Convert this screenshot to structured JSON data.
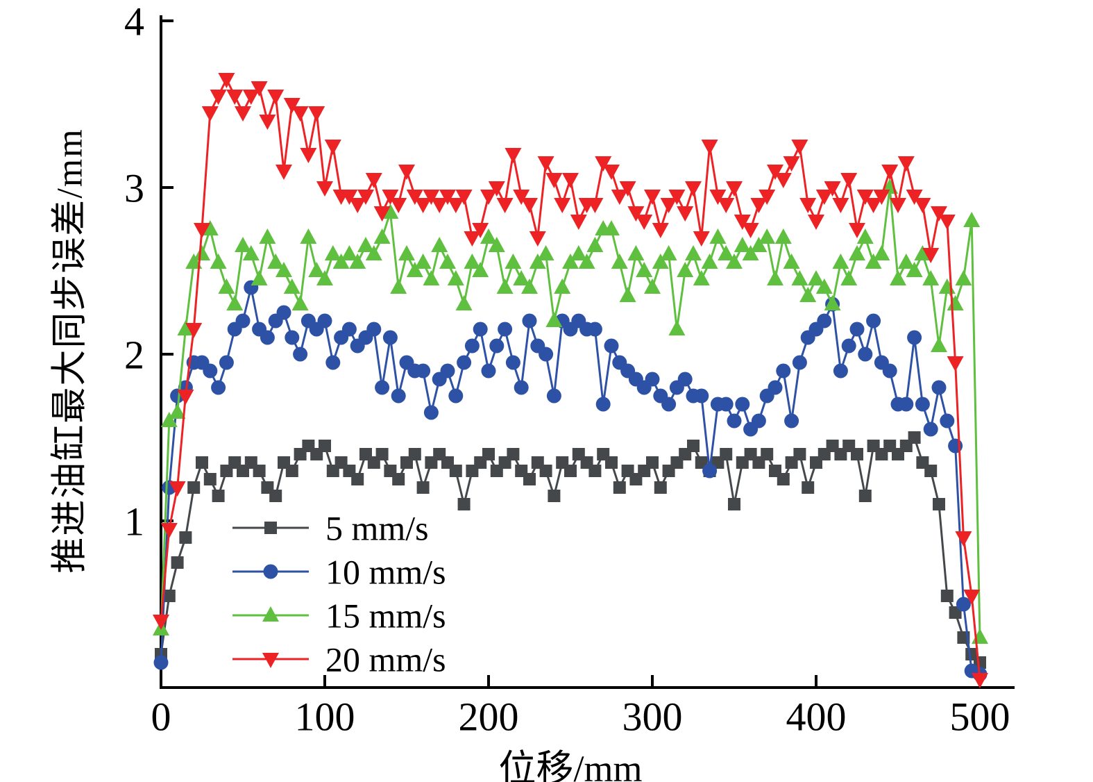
{
  "chart_data": {
    "type": "line",
    "title": "",
    "xlabel": "位移/mm",
    "ylabel": "推进油缸最大同步误差/mm",
    "xlim": [
      0,
      500
    ],
    "ylim": [
      0,
      4
    ],
    "x_ticks": [
      0,
      100,
      200,
      300,
      400,
      500
    ],
    "y_ticks": [
      1,
      2,
      3,
      4
    ],
    "grid": false,
    "legend_position": "inside-lower-left",
    "x": [
      0,
      5,
      10,
      15,
      20,
      25,
      30,
      35,
      40,
      45,
      50,
      55,
      60,
      65,
      70,
      75,
      80,
      85,
      90,
      95,
      100,
      105,
      110,
      115,
      120,
      125,
      130,
      135,
      140,
      145,
      150,
      155,
      160,
      165,
      170,
      175,
      180,
      185,
      190,
      195,
      200,
      205,
      210,
      215,
      220,
      225,
      230,
      235,
      240,
      245,
      250,
      255,
      260,
      265,
      270,
      275,
      280,
      285,
      290,
      295,
      300,
      305,
      310,
      315,
      320,
      325,
      330,
      335,
      340,
      345,
      350,
      355,
      360,
      365,
      370,
      375,
      380,
      385,
      390,
      395,
      400,
      405,
      410,
      415,
      420,
      425,
      430,
      435,
      440,
      445,
      450,
      455,
      460,
      465,
      470,
      475,
      480,
      485,
      490,
      495,
      500
    ],
    "series": [
      {
        "name": "5 mm/s",
        "marker": "square",
        "color": "#45484b",
        "values": [
          0.2,
          0.55,
          0.75,
          0.9,
          1.2,
          1.35,
          1.25,
          1.15,
          1.3,
          1.35,
          1.3,
          1.35,
          1.3,
          1.2,
          1.15,
          1.35,
          1.3,
          1.4,
          1.45,
          1.4,
          1.45,
          1.3,
          1.35,
          1.3,
          1.25,
          1.4,
          1.35,
          1.4,
          1.3,
          1.25,
          1.35,
          1.4,
          1.2,
          1.35,
          1.4,
          1.35,
          1.3,
          1.1,
          1.3,
          1.35,
          1.4,
          1.3,
          1.35,
          1.4,
          1.3,
          1.25,
          1.35,
          1.3,
          1.15,
          1.35,
          1.3,
          1.4,
          1.35,
          1.3,
          1.4,
          1.35,
          1.2,
          1.3,
          1.25,
          1.3,
          1.35,
          1.2,
          1.3,
          1.35,
          1.4,
          1.45,
          1.35,
          1.3,
          1.35,
          1.4,
          1.1,
          1.35,
          1.4,
          1.35,
          1.4,
          1.3,
          1.25,
          1.35,
          1.4,
          1.2,
          1.35,
          1.4,
          1.45,
          1.4,
          1.45,
          1.4,
          1.15,
          1.45,
          1.4,
          1.45,
          1.4,
          1.45,
          1.5,
          1.35,
          1.3,
          1.1,
          0.55,
          0.45,
          0.3,
          0.2,
          0.15
        ]
      },
      {
        "name": "10 mm/s",
        "marker": "circle",
        "color": "#2c51a5",
        "values": [
          0.15,
          1.2,
          1.75,
          1.8,
          1.95,
          1.95,
          1.9,
          1.8,
          1.95,
          2.15,
          2.2,
          2.4,
          2.15,
          2.1,
          2.2,
          2.25,
          2.1,
          2.0,
          2.2,
          2.15,
          2.2,
          1.95,
          2.1,
          2.15,
          2.05,
          2.1,
          2.15,
          1.8,
          2.1,
          1.75,
          1.95,
          1.9,
          1.9,
          1.65,
          1.85,
          1.9,
          1.75,
          1.95,
          2.05,
          2.15,
          1.9,
          2.05,
          2.15,
          1.95,
          1.8,
          2.2,
          2.05,
          2.0,
          1.75,
          2.2,
          2.15,
          2.2,
          2.15,
          2.15,
          1.7,
          2.05,
          1.95,
          1.9,
          1.85,
          1.8,
          1.85,
          1.75,
          1.7,
          1.8,
          1.85,
          1.75,
          1.75,
          1.3,
          1.7,
          1.7,
          1.6,
          1.7,
          1.55,
          1.6,
          1.75,
          1.8,
          1.9,
          1.6,
          1.95,
          2.1,
          2.15,
          2.2,
          2.3,
          1.9,
          2.05,
          2.15,
          2.0,
          2.2,
          1.95,
          1.9,
          1.7,
          1.7,
          2.1,
          1.7,
          1.55,
          1.8,
          1.6,
          1.45,
          0.5,
          0.1,
          0.08
        ]
      },
      {
        "name": "15 mm/s",
        "marker": "triangle-up",
        "color": "#5fbf3f",
        "values": [
          0.35,
          1.6,
          1.65,
          2.15,
          2.55,
          2.6,
          2.75,
          2.55,
          2.4,
          2.3,
          2.65,
          2.6,
          2.45,
          2.7,
          2.55,
          2.5,
          2.4,
          2.3,
          2.7,
          2.5,
          2.45,
          2.6,
          2.55,
          2.6,
          2.55,
          2.65,
          2.6,
          2.7,
          2.85,
          2.4,
          2.6,
          2.5,
          2.55,
          2.45,
          2.65,
          2.55,
          2.45,
          2.3,
          2.55,
          2.5,
          2.7,
          2.65,
          2.4,
          2.55,
          2.45,
          2.4,
          2.55,
          2.6,
          2.2,
          2.4,
          2.55,
          2.6,
          2.55,
          2.65,
          2.75,
          2.75,
          2.55,
          2.35,
          2.6,
          2.5,
          2.4,
          2.55,
          2.6,
          2.15,
          2.5,
          2.6,
          2.45,
          2.55,
          2.7,
          2.6,
          2.55,
          2.65,
          2.6,
          2.65,
          2.7,
          2.45,
          2.7,
          2.55,
          2.45,
          2.35,
          2.45,
          2.4,
          2.3,
          2.55,
          2.45,
          2.6,
          2.7,
          2.55,
          2.6,
          3.0,
          2.45,
          2.55,
          2.5,
          2.6,
          2.45,
          2.05,
          2.4,
          2.3,
          2.45,
          2.8,
          0.3
        ]
      },
      {
        "name": "20 mm/s",
        "marker": "triangle-down",
        "color": "#ec2224",
        "values": [
          0.4,
          0.95,
          1.2,
          1.75,
          2.15,
          2.75,
          3.45,
          3.55,
          3.65,
          3.55,
          3.45,
          3.55,
          3.6,
          3.4,
          3.55,
          3.1,
          3.5,
          3.45,
          3.2,
          3.45,
          3.0,
          3.25,
          2.95,
          2.95,
          2.9,
          2.95,
          3.05,
          2.85,
          2.95,
          2.9,
          3.1,
          2.95,
          2.9,
          2.95,
          2.9,
          2.95,
          2.9,
          2.95,
          2.7,
          2.75,
          2.95,
          3.0,
          2.9,
          3.2,
          2.95,
          2.9,
          2.7,
          3.15,
          3.05,
          2.9,
          3.05,
          2.8,
          2.9,
          2.9,
          3.15,
          3.1,
          2.95,
          3.0,
          2.85,
          2.8,
          2.95,
          2.75,
          2.9,
          2.95,
          2.85,
          3.0,
          2.7,
          3.25,
          2.95,
          2.9,
          3.0,
          2.8,
          2.75,
          2.9,
          2.95,
          3.1,
          3.05,
          3.15,
          3.25,
          2.9,
          2.8,
          2.95,
          3.0,
          2.9,
          3.05,
          2.75,
          2.95,
          2.9,
          2.95,
          3.1,
          2.9,
          3.15,
          2.95,
          2.9,
          2.6,
          2.85,
          2.8,
          1.95,
          0.9,
          0.55,
          0.05
        ]
      }
    ]
  }
}
